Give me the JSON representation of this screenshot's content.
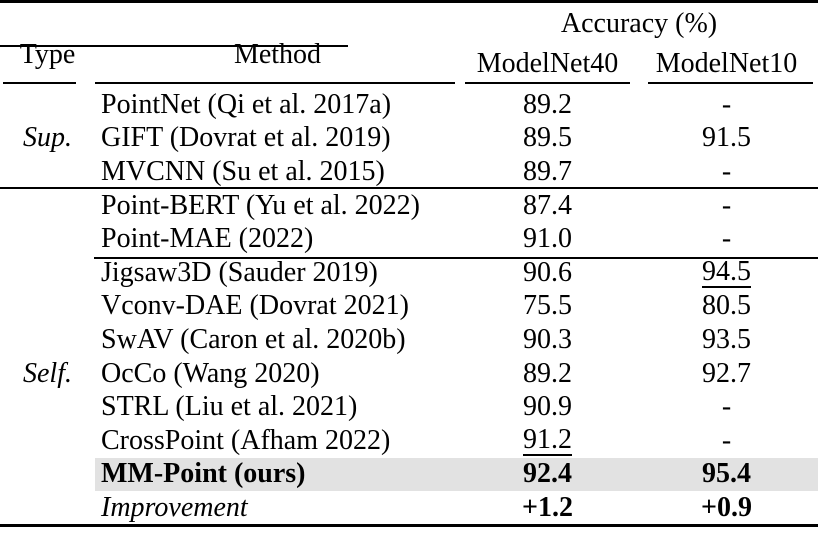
{
  "header": {
    "type": "Type",
    "method": "Method",
    "accuracy_group": "Accuracy (%)",
    "dataset1": "ModelNet40",
    "dataset2": "ModelNet10"
  },
  "colors": {
    "highlight_row": "#e2e2e2",
    "rule": "#000000",
    "text": "#000000"
  },
  "rows": [
    {
      "type": "",
      "method": "PointNet (Qi et al. 2017a)",
      "mn40": "89.2",
      "mn10": "-"
    },
    {
      "type": "Sup.",
      "method": "GIFT (Dovrat et al. 2019)",
      "mn40": "89.5",
      "mn10": "91.5"
    },
    {
      "type": "",
      "method": "MVCNN (Su et al. 2015)",
      "mn40": "89.7",
      "mn10": "-"
    },
    {
      "type": "",
      "method": "Point-BERT (Yu et al. 2022)",
      "mn40": "87.4",
      "mn10": "-"
    },
    {
      "type": "",
      "method": "Point-MAE (2022)",
      "mn40": "91.0",
      "mn10": "-"
    },
    {
      "type": "",
      "method": "Jigsaw3D (Sauder 2019)",
      "mn40": "90.6",
      "mn10": "94.5"
    },
    {
      "type": "",
      "method": "Vconv-DAE (Dovrat 2021)",
      "mn40": "75.5",
      "mn10": "80.5"
    },
    {
      "type": "",
      "method": "SwAV (Caron et al. 2020b)",
      "mn40": "90.3",
      "mn10": "93.5"
    },
    {
      "type": "Self.",
      "method": "OcCo (Wang 2020)",
      "mn40": "89.2",
      "mn10": "92.7"
    },
    {
      "type": "",
      "method": "STRL (Liu et al. 2021)",
      "mn40": "90.9",
      "mn10": "-"
    },
    {
      "type": "",
      "method": "CrossPoint (Afham 2022)",
      "mn40": "91.2",
      "mn10": "-"
    },
    {
      "type": "",
      "method": "MM-Point (ours)",
      "mn40": "92.4",
      "mn10": "95.4"
    },
    {
      "type": "",
      "method": "Improvement",
      "mn40": "+1.2",
      "mn10": "+0.9"
    }
  ]
}
